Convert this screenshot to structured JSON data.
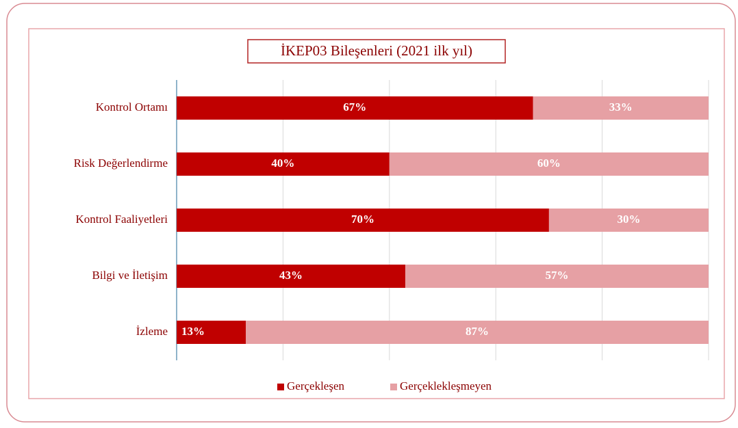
{
  "chart_data": {
    "type": "stacked-bar-horizontal",
    "title": "İKEP03 Bileşenleri (2021 ilk yıl)",
    "categories": [
      "Kontrol Ortamı",
      "Risk Değerlendirme",
      "Kontrol Faaliyetleri",
      "Bilgi ve İletişim",
      "İzleme"
    ],
    "series": [
      {
        "name": "Gerçekleşen",
        "color": "#c00000",
        "values": [
          67,
          40,
          70,
          43,
          13
        ],
        "value_labels": [
          "67%",
          "40%",
          "70%",
          "43%",
          "13%"
        ]
      },
      {
        "name": "Gerçeklekleşmeyen",
        "color": "#e6a0a4",
        "values": [
          33,
          60,
          30,
          57,
          87
        ],
        "value_labels": [
          "33%",
          "60%",
          "30%",
          "57%",
          "87%"
        ]
      }
    ],
    "xlim": [
      0,
      100
    ],
    "xticks": [
      0,
      20,
      40,
      60,
      80,
      100
    ],
    "grid": true,
    "legend": "bottom"
  }
}
